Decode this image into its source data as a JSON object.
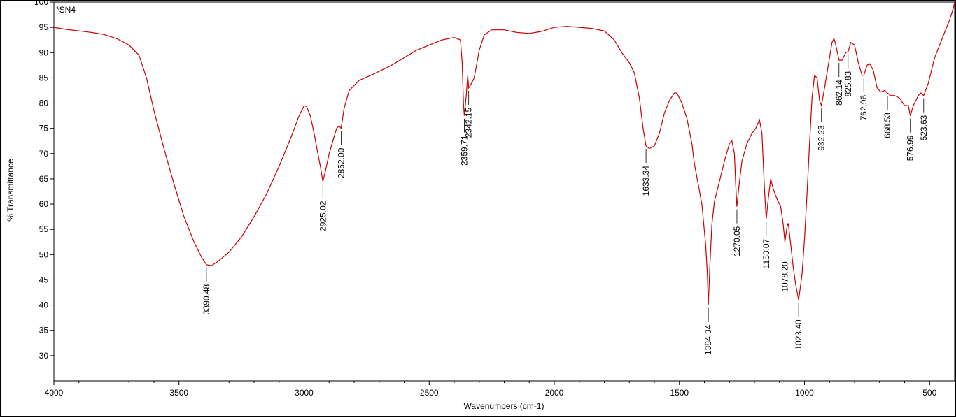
{
  "chart_data": {
    "type": "line",
    "title": "*SN4",
    "xlabel": "Wavenumbers (cm-1)",
    "ylabel": "% Transmittance",
    "xlim": [
      4000,
      400
    ],
    "ylim": [
      25,
      100
    ],
    "x_reversed": true,
    "grid": false,
    "colors": {
      "spectrum": "#cc0000",
      "axes": "#000000",
      "annotation": "#000000"
    },
    "x_ticks": [
      {
        "value": 4000,
        "label": "4000"
      },
      {
        "value": 3500,
        "label": "3500"
      },
      {
        "value": 3000,
        "label": "3000"
      },
      {
        "value": 2500,
        "label": "2500"
      },
      {
        "value": 2000,
        "label": "2000"
      },
      {
        "value": 1500,
        "label": "1500"
      },
      {
        "value": 1000,
        "label": "1000"
      },
      {
        "value": 500,
        "label": "500"
      }
    ],
    "y_ticks": [
      {
        "value": 100,
        "label": "100"
      },
      {
        "value": 95,
        "label": "95"
      },
      {
        "value": 90,
        "label": "90"
      },
      {
        "value": 85,
        "label": "85"
      },
      {
        "value": 80,
        "label": "80"
      },
      {
        "value": 75,
        "label": "75"
      },
      {
        "value": 70,
        "label": "70"
      },
      {
        "value": 65,
        "label": "65"
      },
      {
        "value": 60,
        "label": "60"
      },
      {
        "value": 55,
        "label": "55"
      },
      {
        "value": 50,
        "label": "50"
      },
      {
        "value": 45,
        "label": "45"
      },
      {
        "value": 40,
        "label": "40"
      },
      {
        "value": 35,
        "label": "35"
      },
      {
        "value": 30,
        "label": "30"
      }
    ],
    "series": [
      {
        "points": [
          [
            4000,
            95.0
          ],
          [
            3950,
            94.6
          ],
          [
            3900,
            94.3
          ],
          [
            3850,
            94.0
          ],
          [
            3800,
            93.6
          ],
          [
            3750,
            92.8
          ],
          [
            3700,
            91.5
          ],
          [
            3660,
            89.5
          ],
          [
            3630,
            85.0
          ],
          [
            3600,
            78.5
          ],
          [
            3560,
            71.0
          ],
          [
            3520,
            64.0
          ],
          [
            3480,
            57.5
          ],
          [
            3440,
            52.5
          ],
          [
            3410,
            49.5
          ],
          [
            3390,
            48.0
          ],
          [
            3370,
            47.8
          ],
          [
            3340,
            48.8
          ],
          [
            3300,
            50.5
          ],
          [
            3250,
            53.5
          ],
          [
            3200,
            57.5
          ],
          [
            3150,
            62.0
          ],
          [
            3100,
            67.5
          ],
          [
            3050,
            73.5
          ],
          [
            3020,
            77.5
          ],
          [
            3000,
            79.5
          ],
          [
            2990,
            79.3
          ],
          [
            2975,
            77.5
          ],
          [
            2960,
            74.0
          ],
          [
            2945,
            70.0
          ],
          [
            2935,
            67.5
          ],
          [
            2925,
            64.5
          ],
          [
            2915,
            66.5
          ],
          [
            2900,
            70.0
          ],
          [
            2885,
            72.5
          ],
          [
            2870,
            75.0
          ],
          [
            2860,
            75.5
          ],
          [
            2852,
            75.0
          ],
          [
            2840,
            79.0
          ],
          [
            2820,
            82.5
          ],
          [
            2780,
            84.5
          ],
          [
            2720,
            85.8
          ],
          [
            2650,
            87.5
          ],
          [
            2600,
            89.0
          ],
          [
            2550,
            90.5
          ],
          [
            2500,
            91.5
          ],
          [
            2450,
            92.5
          ],
          [
            2400,
            93.0
          ],
          [
            2375,
            92.5
          ],
          [
            2368,
            88.0
          ],
          [
            2363,
            80.0
          ],
          [
            2359.7,
            77.5
          ],
          [
            2352,
            81.5
          ],
          [
            2346,
            85.5
          ],
          [
            2342.2,
            83.0
          ],
          [
            2335,
            83.5
          ],
          [
            2320,
            85.0
          ],
          [
            2300,
            90.5
          ],
          [
            2280,
            93.5
          ],
          [
            2250,
            94.5
          ],
          [
            2200,
            94.5
          ],
          [
            2150,
            94.0
          ],
          [
            2100,
            93.8
          ],
          [
            2050,
            94.2
          ],
          [
            2000,
            95.0
          ],
          [
            1950,
            95.2
          ],
          [
            1900,
            95.0
          ],
          [
            1850,
            94.8
          ],
          [
            1800,
            94.3
          ],
          [
            1760,
            92.5
          ],
          [
            1730,
            90.0
          ],
          [
            1700,
            88.0
          ],
          [
            1680,
            86.0
          ],
          [
            1660,
            81.0
          ],
          [
            1645,
            75.0
          ],
          [
            1633.3,
            71.5
          ],
          [
            1620,
            71.0
          ],
          [
            1600,
            71.5
          ],
          [
            1580,
            74.0
          ],
          [
            1560,
            78.0
          ],
          [
            1540,
            80.5
          ],
          [
            1520,
            82.0
          ],
          [
            1510,
            82.0
          ],
          [
            1490,
            80.0
          ],
          [
            1470,
            77.0
          ],
          [
            1450,
            72.0
          ],
          [
            1440,
            68.0
          ],
          [
            1425,
            64.0
          ],
          [
            1410,
            60.0
          ],
          [
            1395,
            52.0
          ],
          [
            1388,
            46.0
          ],
          [
            1384.3,
            40.0
          ],
          [
            1378,
            48.0
          ],
          [
            1370,
            56.0
          ],
          [
            1360,
            60.5
          ],
          [
            1340,
            64.5
          ],
          [
            1320,
            68.5
          ],
          [
            1300,
            72.0
          ],
          [
            1290,
            72.5
          ],
          [
            1280,
            70.0
          ],
          [
            1275,
            64.0
          ],
          [
            1270.1,
            59.5
          ],
          [
            1262,
            63.5
          ],
          [
            1250,
            68.5
          ],
          [
            1230,
            72.0
          ],
          [
            1210,
            74.0
          ],
          [
            1195,
            75.0
          ],
          [
            1180,
            76.7
          ],
          [
            1170,
            74.0
          ],
          [
            1160,
            63.0
          ],
          [
            1153.1,
            57.0
          ],
          [
            1145,
            61.0
          ],
          [
            1135,
            65.0
          ],
          [
            1125,
            63.0
          ],
          [
            1110,
            61.0
          ],
          [
            1095,
            59.5
          ],
          [
            1085,
            56.0
          ],
          [
            1078.2,
            52.5
          ],
          [
            1070,
            55.5
          ],
          [
            1065,
            56.2
          ],
          [
            1055,
            52.0
          ],
          [
            1045,
            47.5
          ],
          [
            1035,
            44.0
          ],
          [
            1023.4,
            41.0
          ],
          [
            1010,
            46.0
          ],
          [
            1000,
            53.0
          ],
          [
            990,
            62.0
          ],
          [
            980,
            72.0
          ],
          [
            970,
            81.0
          ],
          [
            960,
            85.5
          ],
          [
            950,
            85.0
          ],
          [
            940,
            80.5
          ],
          [
            932.2,
            79.5
          ],
          [
            920,
            83.0
          ],
          [
            905,
            87.5
          ],
          [
            890,
            92.0
          ],
          [
            882,
            92.8
          ],
          [
            875,
            91.5
          ],
          [
            862.1,
            88.5
          ],
          [
            850,
            88.5
          ],
          [
            835,
            90.0
          ],
          [
            825.8,
            90.2
          ],
          [
            815,
            92.0
          ],
          [
            800,
            91.5
          ],
          [
            785,
            88.0
          ],
          [
            770,
            85.5
          ],
          [
            762.96,
            85.5
          ],
          [
            750,
            87.5
          ],
          [
            740,
            87.8
          ],
          [
            725,
            86.5
          ],
          [
            710,
            83.0
          ],
          [
            695,
            82.2
          ],
          [
            680,
            82.5
          ],
          [
            668.5,
            82.0
          ],
          [
            655,
            81.5
          ],
          [
            640,
            81.5
          ],
          [
            620,
            81.0
          ],
          [
            600,
            79.5
          ],
          [
            585,
            79.5
          ],
          [
            577,
            77.5
          ],
          [
            565,
            79.5
          ],
          [
            545,
            81.5
          ],
          [
            535,
            82.0
          ],
          [
            523.6,
            81.5
          ],
          [
            505,
            84.0
          ],
          [
            480,
            89.0
          ],
          [
            460,
            91.5
          ],
          [
            440,
            94.0
          ],
          [
            420,
            96.5
          ],
          [
            405,
            98.8
          ],
          [
            400,
            100.0
          ]
        ]
      }
    ],
    "annotations": [
      {
        "x": 3390.48,
        "y": 48.0,
        "label": "3390.48"
      },
      {
        "x": 2925.02,
        "y": 64.5,
        "label": "2925.02"
      },
      {
        "x": 2852.0,
        "y": 75.0,
        "label": "2852.00"
      },
      {
        "x": 2359.71,
        "y": 77.5,
        "label": "2359.71"
      },
      {
        "x": 2342.15,
        "y": 83.0,
        "label": "2342.15"
      },
      {
        "x": 1633.34,
        "y": 71.5,
        "label": "1633.34"
      },
      {
        "x": 1384.34,
        "y": 40.0,
        "label": "1384.34"
      },
      {
        "x": 1270.05,
        "y": 59.5,
        "label": "1270.05"
      },
      {
        "x": 1153.07,
        "y": 57.0,
        "label": "1153.07"
      },
      {
        "x": 1078.2,
        "y": 52.5,
        "label": "1078.20"
      },
      {
        "x": 1023.4,
        "y": 41.0,
        "label": "1023.40"
      },
      {
        "x": 932.23,
        "y": 79.5,
        "label": "932.23"
      },
      {
        "x": 862.14,
        "y": 88.5,
        "label": "862.14"
      },
      {
        "x": 825.83,
        "y": 90.2,
        "label": "825.83"
      },
      {
        "x": 762.96,
        "y": 85.5,
        "label": "762.96"
      },
      {
        "x": 668.53,
        "y": 82.0,
        "label": "668.53"
      },
      {
        "x": 576.99,
        "y": 77.5,
        "label": "576.99"
      },
      {
        "x": 523.63,
        "y": 81.5,
        "label": "523.63"
      }
    ]
  }
}
